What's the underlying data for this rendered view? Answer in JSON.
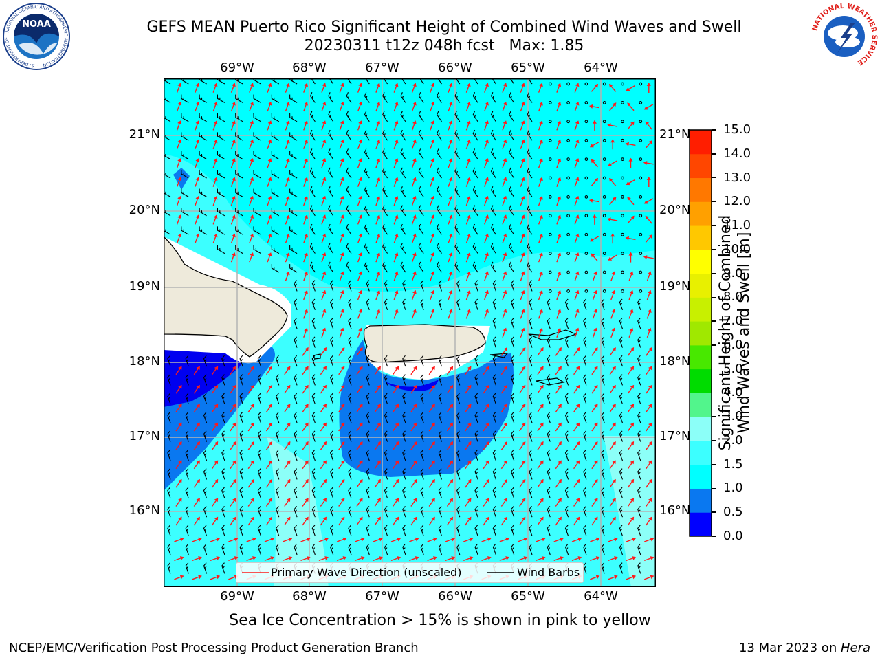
{
  "header": {
    "title_line1": "GEFS MEAN Puerto Rico Significant Height of Combined Wind Waves and Swell",
    "title_line2": "20230311 t12z 048h fcst   Max: 1.85"
  },
  "logos": {
    "left": {
      "name": "noaa-logo",
      "text": "NOAA",
      "ring_text": "NATIONAL OCEANIC AND ATMOSPHERIC ADMINISTRATION · U.S. DEPARTMENT OF COMMERCE"
    },
    "right": {
      "name": "nws-logo",
      "ring_text": "NATIONAL WEATHER SERVICE"
    }
  },
  "map": {
    "lon_labels": [
      "69°W",
      "68°W",
      "67°W",
      "66°W",
      "65°W",
      "64°W"
    ],
    "lat_labels": [
      "21°N",
      "20°N",
      "19°N",
      "18°N",
      "17°N",
      "16°N"
    ],
    "colors": {
      "land": "#eeeadb",
      "deep_blue": "#0000f0",
      "mid_blue": "#0a78f0",
      "cyan": "#00ffff",
      "light_cyan": "#3cffff",
      "pale_cyan": "#8cfff8",
      "arrow": "#ff1a1a",
      "barb": "#000000"
    }
  },
  "legend": {
    "wave_label": "Primary Wave Direction (unscaled)",
    "barb_label": "Wind Barbs"
  },
  "colorbar": {
    "title_line1": "Significant Height of Combined",
    "title_line2": "Wind Waves and Swell [m]",
    "ticks": [
      "0.0",
      "0.5",
      "1.0",
      "1.5",
      "2.0",
      "3.0",
      "4.0",
      "5.0",
      "6.0",
      "7.0",
      "8.0",
      "9.0",
      "10.0",
      "11.0",
      "12.0",
      "13.0",
      "14.0",
      "15.0"
    ],
    "colors": [
      "#0000ff",
      "#0a78f0",
      "#00ffff",
      "#3cffff",
      "#8cfff8",
      "#52f58c",
      "#00dc00",
      "#48e800",
      "#a0e800",
      "#c8f000",
      "#e8f000",
      "#ffff00",
      "#ffc800",
      "#ffa000",
      "#ff7800",
      "#ff4600",
      "#ff1e00"
    ]
  },
  "subtitle": "Sea Ice Concentration > 15% is shown in pink to yellow",
  "footer": {
    "left": "NCEP/EMC/Verification Post Processing Product Generation Branch",
    "right_prefix": "13 Mar 2023 on ",
    "right_host": "Hera"
  }
}
